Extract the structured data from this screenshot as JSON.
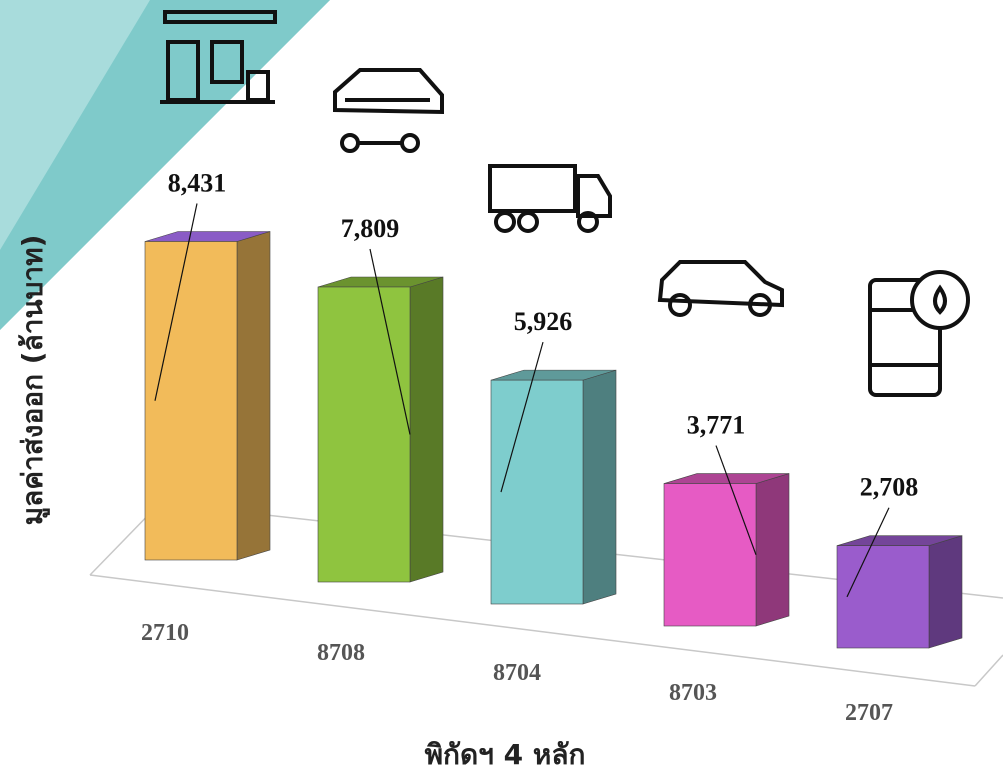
{
  "chart_data": {
    "type": "bar3d",
    "categories": [
      "2710",
      "8708",
      "8704",
      "8703",
      "2707"
    ],
    "values": [
      8431,
      7809,
      5926,
      3771,
      2708
    ],
    "value_labels": [
      "8,431",
      "7,809",
      "5,926",
      "3,771",
      "2,708"
    ],
    "colors": [
      "#f2bb5a",
      "#8fc43f",
      "#7ecdcd",
      "#e65bc4",
      "#9a5ccc"
    ],
    "ylim": [
      0,
      9000
    ],
    "ylabel": "มูลค่าส่งออก (ล้านบาท)",
    "xlabel": "พิกัดฯ 4 หลัก"
  }
}
